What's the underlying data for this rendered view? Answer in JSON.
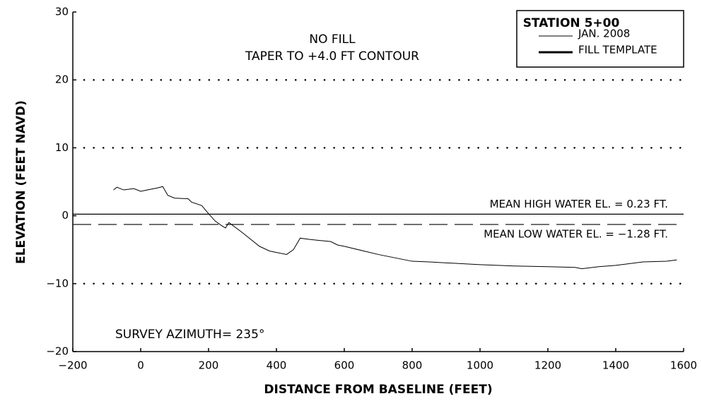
{
  "chart_data": {
    "type": "line",
    "x_label": "DISTANCE FROM BASELINE (FEET)",
    "y_label": "ELEVATION (FEET NAVD)",
    "annotations": [
      "NO FILL",
      "TAPER TO +4.0 FT CONTOUR",
      "SURVEY AZIMUTH= 235°"
    ],
    "legend_title": "STATION 5+00",
    "legend_position": "upper right",
    "xlim": [
      -200,
      1600
    ],
    "ylim": [
      -20,
      30
    ],
    "xticks": [
      {
        "value": -200,
        "label": "−200"
      },
      0,
      200,
      400,
      600,
      800,
      1000,
      1200,
      1400,
      1600
    ],
    "yticks": [
      {
        "value": -20,
        "label": "−20"
      },
      {
        "value": -10,
        "label": "−10"
      },
      0,
      10,
      20,
      30
    ],
    "gridlines": [
      20,
      10,
      -10
    ],
    "grid_style": "dotted",
    "reference_lines": [
      {
        "value": 0.23,
        "label": "MEAN HIGH WATER EL. = 0.23 FT.",
        "style": "solid"
      },
      {
        "value": -1.28,
        "label": "MEAN LOW WATER EL. = −1.28 FT.",
        "style": "dashed"
      }
    ],
    "series": [
      {
        "name": "JAN. 2008",
        "color": "#000000",
        "width": 1,
        "x": [
          -80,
          -70,
          -50,
          -20,
          0,
          20,
          50,
          65,
          80,
          100,
          140,
          150,
          180,
          200,
          220,
          240,
          250,
          260,
          300,
          350,
          380,
          430,
          450,
          470,
          500,
          520,
          560,
          580,
          600,
          700,
          800,
          850,
          1000,
          1100,
          1200,
          1280,
          1300,
          1350,
          1400,
          1480,
          1550,
          1580
        ],
        "values": [
          3.8,
          4.2,
          3.8,
          4.0,
          3.6,
          3.8,
          4.1,
          4.3,
          3.0,
          2.6,
          2.5,
          2.0,
          1.5,
          0.3,
          -0.8,
          -1.5,
          -1.8,
          -1.0,
          -2.5,
          -4.5,
          -5.2,
          -5.7,
          -5.0,
          -3.3,
          -3.5,
          -3.6,
          -3.8,
          -4.3,
          -4.5,
          -5.7,
          -6.7,
          -6.8,
          -7.2,
          -7.4,
          -7.5,
          -7.6,
          -7.8,
          -7.5,
          -7.3,
          -6.8,
          -6.7,
          -6.5
        ]
      },
      {
        "name": "FILL TEMPLATE",
        "color": "#000000",
        "width": 3,
        "x": [],
        "values": []
      }
    ]
  }
}
